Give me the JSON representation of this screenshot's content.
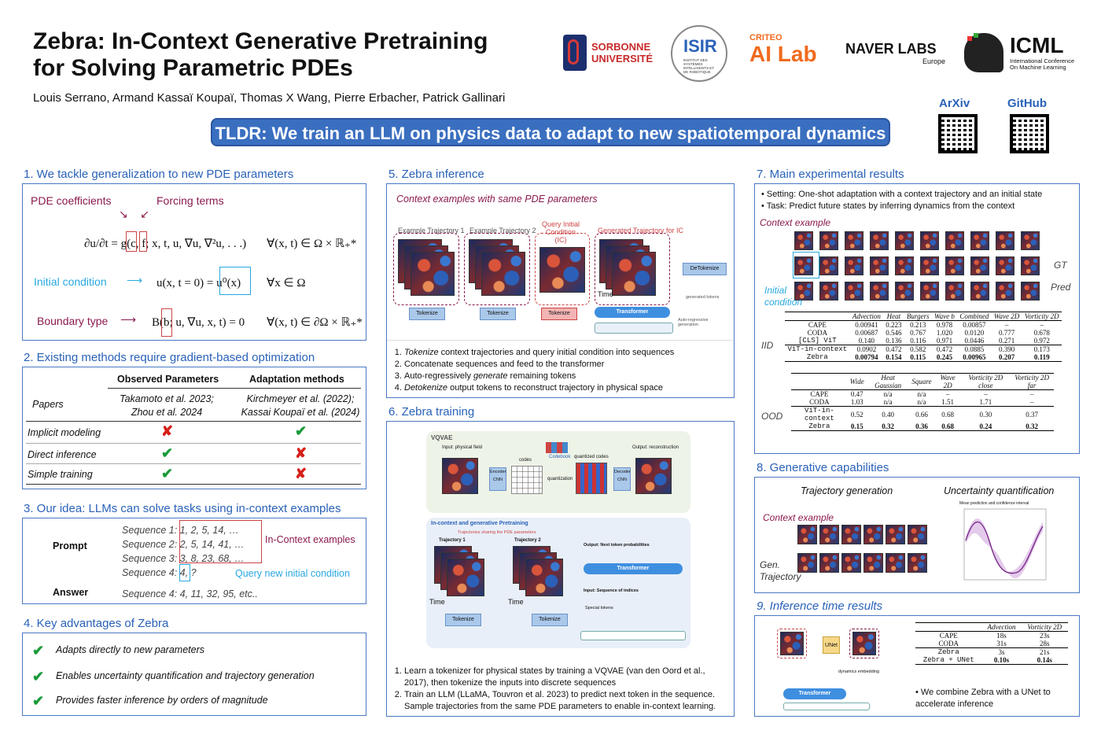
{
  "header": {
    "title_line1": "Zebra: In-Context Generative Pretraining",
    "title_line2": "for Solving Parametric PDEs",
    "authors": "Louis Serrano, Armand Kassaï Koupaï, Thomas X Wang, Pierre Erbacher, Patrick Gallinari",
    "tldr": "TLDR: We train an LLM on physics data to adapt to new spatiotemporal dynamics"
  },
  "logos": {
    "sorbonne1": "SORBONNE",
    "sorbonne2": "UNIVERSITÉ",
    "isir": "ISIR",
    "isir_sub": "INSTITUT DES SYSTÈMES INTELLIGENTS ET DE ROBOTIQUE",
    "criteo": "CRITEO",
    "ailab": "AI Lab",
    "naver": "NAVER LABS",
    "naver_sub": "Europe",
    "icml": "ICML",
    "icml_sub1": "International Conference",
    "icml_sub2": "On Machine Learning",
    "arxiv": "ArXiv",
    "github": "GitHub"
  },
  "s1": {
    "title": "1. We tackle generalization to new PDE parameters",
    "coef": "PDE coefficients",
    "forcing": "Forcing terms",
    "eq1": "∂u/∂t = g(c, f; x, t, u, ∇u, ∇²u, . . .)",
    "eq1_dom": "∀(x, t) ∈ Ω × ℝ₊*",
    "ic": "Initial condition",
    "eq2": "u(x, t = 0) = u⁰(x)",
    "eq2_dom": "∀x ∈ Ω",
    "bt": "Boundary type",
    "eq3": "B(b; u, ∇u, x, t) = 0",
    "eq3_dom": "∀(x, t) ∈ ∂Ω × ℝ₊*"
  },
  "s2": {
    "title": "2. Existing methods require gradient-based optimization",
    "col1": "Observed Parameters",
    "col2": "Adaptation methods",
    "papers": "Papers",
    "p1": "Takamoto et al. 2023;",
    "p1b": "Zhou et al. 2024",
    "p2": "Kirchmeyer et al. (2022);",
    "p2b": "Kassai Koupaï et al. (2024)",
    "r1": "Implicit modeling",
    "r2": "Direct inference",
    "r3": "Simple training"
  },
  "s3": {
    "title": "3. Our idea: LLMs can solve tasks using in-context examples",
    "prompt": "Prompt",
    "answer": "Answer",
    "seq1": "Sequence 1: 1, 2, 5, 14, …",
    "seq2": "Sequence 2: 2, 5, 14, 41, …",
    "seq3": "Sequence 3: 3, 8, 23, 68, …",
    "seq4": "Sequence 4: 4, ?",
    "ans": "Sequence 4: 4, 11, 32, 95, etc..",
    "ice": "In-Context examples",
    "query": "Query new initial condition"
  },
  "s4": {
    "title": "4. Key advantages of Zebra",
    "a1": "Adapts directly to new parameters",
    "a2": "Enables uncertainty quantification and trajectory generation",
    "a3": "Provides faster inference by orders of magnitude"
  },
  "s5": {
    "title": "5. Zebra inference",
    "ctx": "Context examples with same PDE parameters",
    "t1": "Example Trajectory 1",
    "t2": "Example Trajectory 2",
    "t3": "Query Initial Condition (IC)",
    "t4": "Generated Trajectory for IC",
    "tok": "Tokenize",
    "detok": "DeTokenize",
    "trans": "Transformer",
    "time": "Time",
    "gen": "generated tokens",
    "ar": "Auto-regressive generation",
    "b1a": "Tokenize",
    "b1b": " context trajectories and query initial condition into sequences",
    "b2": "Concatenate sequences and feed to the transformer",
    "b3a": "Auto-regressively ",
    "b3b": "generate",
    "b3c": " remaining tokens",
    "b4a": "Detokenize",
    "b4b": " output tokens to reconstruct trajectory in physical space"
  },
  "s6": {
    "title": "6. Zebra training",
    "vq": "VQVAE",
    "input": "Input: physical field",
    "codes": "codes",
    "codebook": "Codebook",
    "quant": "quantization",
    "qcodes": "quantized codes",
    "output": "Output: reconstruction",
    "enc": "Encoder CNN",
    "dec": "Decoder CNN",
    "icg": "In-context and generative Pretraining",
    "share": "Trajectories sharing the PDE parameters",
    "tr1": "Trajectory 1",
    "tr2": "Trajectory 2",
    "outp": "Output: Next token probabilities",
    "inp": "Input: Sequence of indices",
    "spec": "Special tokens",
    "tok": "Tokenize",
    "trans": "Transformer",
    "time": "Time",
    "b1": "Learn a tokenizer for physical states by training a VQVAE (van den Oord et al., 2017), then tokenize the inputs into discrete sequences",
    "b2": "Train an LLM (LLaMA, Touvron et al. 2023) to predict next token in the sequence. Sample trajectories from the same PDE parameters to enable in-context learning."
  },
  "s7": {
    "title": "7. Main experimental results",
    "set1": "Setting: One-shot adaptation with a context trajectory and an initial state",
    "set2": "Task:  Predict future states by inferring dynamics from the context",
    "ctx": "Context example",
    "ic": "Initial condition",
    "gt": "GT",
    "pred": "Pred",
    "iid": "IID",
    "ood": "OOD",
    "iid_head": [
      "",
      "Advection",
      "Heat",
      "Burgers",
      "Wave b",
      "Combined",
      "Wave 2D",
      "Vorticity 2D"
    ],
    "iid_rows": [
      [
        "CAPE",
        "0.00941",
        "0.223",
        "0.213",
        "0.978",
        "0.00857",
        "–",
        "–"
      ],
      [
        "CODA",
        "0.00687",
        "0.546",
        "0.767",
        "1.020",
        "0.0120",
        "0.777",
        "0.678"
      ],
      [
        "[CLS] ViT",
        "0.140",
        "0.136",
        "0.116",
        "0.971",
        "0.0446",
        "0.271",
        "0.972"
      ],
      [
        "ViT-in-context",
        "0.0902",
        "0.472",
        "0.582",
        "0.472",
        "0.0885",
        "0.390",
        "0.173"
      ],
      [
        "Zebra",
        "0.00794",
        "0.154",
        "0.115",
        "0.245",
        "0.00965",
        "0.207",
        "0.119"
      ]
    ],
    "ood_head": [
      "",
      "Wide",
      "Heat Gaussian",
      "Square",
      "Wave 2D",
      "Vorticity 2D close",
      "Vorticity 2D far"
    ],
    "ood_rows": [
      [
        "CAPE",
        "0.47",
        "n/a",
        "n/a",
        "–",
        "–",
        "–"
      ],
      [
        "CODA",
        "1.03",
        "n/a",
        "n/a",
        "1.51",
        "1.71",
        "–"
      ],
      [
        "ViT-in-context",
        "0.52",
        "0.40",
        "0.66",
        "0.68",
        "0.30",
        "0.37"
      ],
      [
        "Zebra",
        "0.15",
        "0.32",
        "0.36",
        "0.68",
        "0.24",
        "0.32"
      ]
    ]
  },
  "s8": {
    "title": "8. Generative capabilities",
    "traj": "Trajectory generation",
    "uq": "Uncertainty quantification",
    "ctx": "Context example",
    "gen": "Gen. Trajectory",
    "plot_title": "Mean prediction and confidence interval"
  },
  "s9": {
    "title": "9. Inference time results",
    "unet": "UNet",
    "trans": "Transformer",
    "dyn": "dynamics embedding",
    "head": [
      "",
      "Advection",
      "Vorticity 2D"
    ],
    "rows": [
      [
        "CAPE",
        "18s",
        "23s"
      ],
      [
        "CODA",
        "31s",
        "28s"
      ],
      [
        "Zebra",
        "3s",
        "21s"
      ],
      [
        "Zebra + UNet",
        "0.10s",
        "0.14s"
      ]
    ],
    "note": "We combine Zebra with a UNet to accelerate inference"
  }
}
